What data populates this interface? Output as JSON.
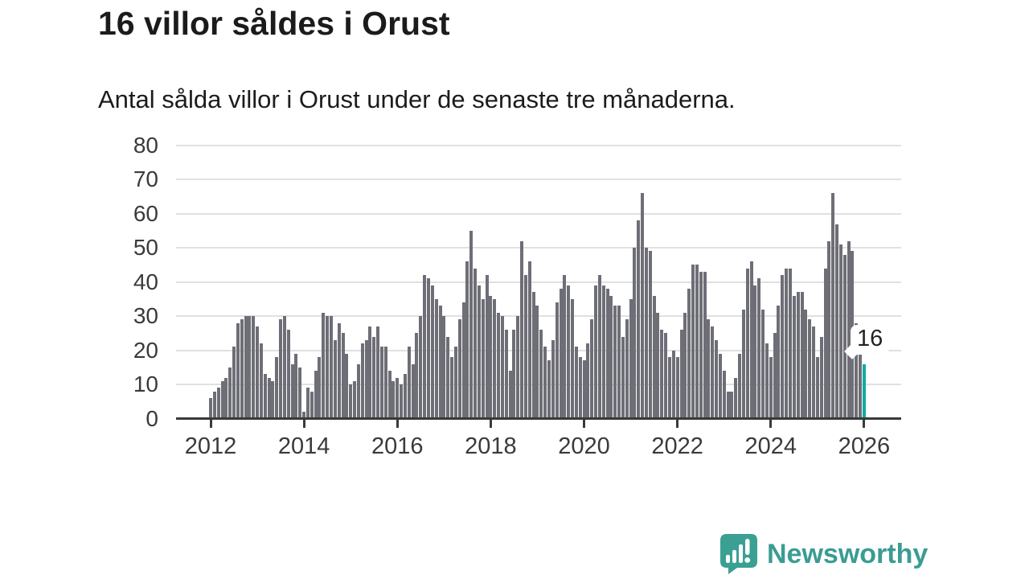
{
  "title": "16 villor såldes i Orust",
  "subtitle": "Antal sålda villor i Orust under de senaste tre månaderna.",
  "annotation": {
    "label": "16"
  },
  "branding": {
    "name": "Newsworthy",
    "icon": "newsworthy-logo-icon"
  },
  "colors": {
    "bar": "#6e6e77",
    "highlight": "#11a9a3",
    "axis": "#3a3a3a",
    "grid": "#e0e0e0",
    "brand": "#3a9c92",
    "text": "#1b1b1b"
  },
  "chart_data": {
    "type": "bar",
    "title": "16 villor såldes i Orust",
    "subtitle": "Antal sålda villor i Orust under de senaste tre månaderna.",
    "x_start": "2012-01",
    "x_interval": "monthly",
    "x_tick_every_n_bars": 24,
    "x_tick_labels": [
      "2012",
      "2014",
      "2016",
      "2018",
      "2020",
      "2022",
      "2024",
      "2026"
    ],
    "ylabel": "",
    "xlabel": "",
    "ylim": [
      0,
      80
    ],
    "y_ticks": [
      0,
      10,
      20,
      30,
      40,
      50,
      60,
      70,
      80
    ],
    "grid": "horizontal",
    "legend": "none",
    "highlighted_last_bar": true,
    "last_value_label": "16",
    "values": [
      6,
      8,
      9,
      11,
      12,
      15,
      21,
      28,
      29,
      30,
      30,
      30,
      27,
      22,
      13,
      12,
      11,
      18,
      29,
      30,
      26,
      16,
      19,
      15,
      2,
      9,
      8,
      14,
      18,
      31,
      30,
      30,
      23,
      28,
      25,
      19,
      10,
      11,
      16,
      22,
      23,
      27,
      24,
      27,
      21,
      21,
      14,
      11,
      12,
      10,
      13,
      21,
      16,
      25,
      30,
      42,
      41,
      39,
      35,
      33,
      30,
      24,
      18,
      21,
      29,
      34,
      46,
      55,
      44,
      39,
      35,
      42,
      36,
      35,
      31,
      30,
      26,
      14,
      26,
      30,
      52,
      42,
      46,
      37,
      33,
      26,
      21,
      17,
      23,
      34,
      38,
      42,
      39,
      35,
      21,
      18,
      17,
      22,
      29,
      39,
      42,
      39,
      38,
      36,
      33,
      33,
      24,
      29,
      35,
      50,
      58,
      66,
      50,
      49,
      36,
      31,
      26,
      25,
      18,
      20,
      18,
      26,
      31,
      38,
      45,
      45,
      43,
      43,
      29,
      27,
      23,
      19,
      14,
      8,
      8,
      12,
      19,
      32,
      44,
      46,
      39,
      41,
      32,
      22,
      18,
      25,
      33,
      42,
      44,
      44,
      36,
      37,
      37,
      32,
      29,
      27,
      18,
      24,
      44,
      52,
      66,
      57,
      51,
      48,
      52,
      49,
      28,
      19,
      16
    ]
  }
}
